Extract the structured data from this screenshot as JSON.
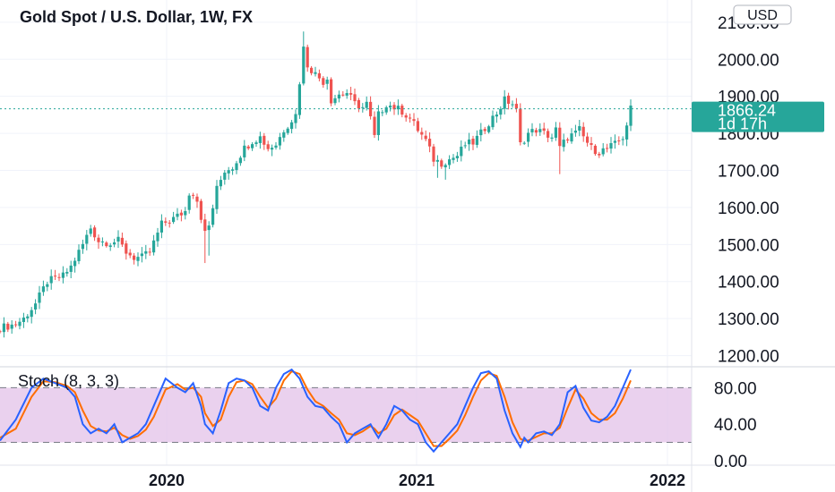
{
  "chart_data": [
    {
      "type": "candlestick",
      "title": "Gold Spot / U.S. Dollar, 1W, FX",
      "currency": "USD",
      "ylim": [
        1170,
        2160
      ],
      "y_ticks": [
        "1200.00",
        "1300.00",
        "1400.00",
        "1500.00",
        "1600.00",
        "1700.00",
        "1800.00",
        "1900.00",
        "2000.00",
        "2100.00"
      ],
      "x_ticks": [
        "2020",
        "2021",
        "2022"
      ],
      "last_price": 1866.24,
      "last_price_label": "1866.24",
      "countdown_label": "1d 17h",
      "colors": {
        "up": "#26a69a",
        "down": "#ef5350",
        "price_line": "#26a69a",
        "badge": "#26a69a"
      },
      "anchors": [
        [
          0,
          1275
        ],
        [
          4,
          1285
        ],
        [
          6,
          1300
        ],
        [
          9,
          1340
        ],
        [
          12,
          1400
        ],
        [
          16,
          1415
        ],
        [
          18,
          1440
        ],
        [
          21,
          1500
        ],
        [
          23,
          1545
        ],
        [
          25,
          1510
        ],
        [
          28,
          1505
        ],
        [
          30,
          1510
        ],
        [
          32,
          1480
        ],
        [
          34,
          1465
        ],
        [
          36,
          1465
        ],
        [
          38,
          1480
        ],
        [
          41,
          1555
        ],
        [
          44,
          1570
        ],
        [
          47,
          1590
        ],
        [
          48,
          1640
        ],
        [
          49,
          1640
        ],
        [
          50,
          1620
        ],
        [
          52,
          1530
        ],
        [
          53,
          1550
        ],
        [
          55,
          1650
        ],
        [
          57,
          1700
        ],
        [
          59,
          1710
        ],
        [
          62,
          1760
        ],
        [
          64,
          1780
        ],
        [
          66,
          1790
        ],
        [
          68,
          1760
        ],
        [
          70,
          1770
        ],
        [
          72,
          1810
        ],
        [
          75,
          1850
        ],
        [
          76,
          1940
        ],
        [
          77,
          2030
        ],
        [
          78,
          1985
        ],
        [
          80,
          1960
        ],
        [
          82,
          1940
        ],
        [
          83,
          1950
        ],
        [
          84,
          1890
        ],
        [
          86,
          1905
        ],
        [
          88,
          1910
        ],
        [
          90,
          1880
        ],
        [
          92,
          1870
        ],
        [
          93,
          1880
        ],
        [
          94,
          1840
        ],
        [
          95,
          1790
        ],
        [
          96,
          1850
        ],
        [
          98,
          1880
        ],
        [
          100,
          1870
        ],
        [
          102,
          1860
        ],
        [
          104,
          1840
        ],
        [
          106,
          1810
        ],
        [
          108,
          1780
        ],
        [
          110,
          1730
        ],
        [
          112,
          1720
        ],
        [
          114,
          1730
        ],
        [
          116,
          1740
        ],
        [
          118,
          1770
        ],
        [
          120,
          1775
        ],
        [
          122,
          1800
        ],
        [
          124,
          1830
        ],
        [
          126,
          1855
        ],
        [
          128,
          1890
        ],
        [
          130,
          1880
        ],
        [
          131,
          1860
        ],
        [
          132,
          1770
        ],
        [
          134,
          1800
        ],
        [
          136,
          1810
        ],
        [
          138,
          1800
        ],
        [
          140,
          1790
        ],
        [
          141,
          1810
        ],
        [
          142,
          1760
        ],
        [
          144,
          1790
        ],
        [
          146,
          1800
        ],
        [
          147,
          1810
        ],
        [
          148,
          1790
        ],
        [
          150,
          1760
        ],
        [
          152,
          1750
        ],
        [
          154,
          1760
        ],
        [
          156,
          1770
        ],
        [
          158,
          1790
        ],
        [
          159,
          1825
        ],
        [
          160,
          1866
        ]
      ],
      "spikes": [
        [
          52,
          1450
        ],
        [
          53,
          1470
        ],
        [
          77,
          2075
        ],
        [
          111,
          1680
        ],
        [
          113,
          1675
        ],
        [
          142,
          1690
        ]
      ]
    },
    {
      "type": "line",
      "title": "Stoch (8, 3, 3)",
      "ylim": [
        -5,
        103
      ],
      "y_ticks": [
        "0.00",
        "40.00",
        "80.00"
      ],
      "bands": [
        20,
        80
      ],
      "colors": {
        "k": "#2962ff",
        "d": "#ff6d00",
        "band": "#e1bee7"
      },
      "series": [
        {
          "role": "k",
          "x": [
            0,
            4,
            8,
            11,
            14,
            17,
            19,
            21,
            23,
            25,
            27,
            29,
            31,
            33,
            35,
            37,
            39,
            42,
            45,
            47,
            49,
            51,
            52,
            54,
            56,
            58,
            60,
            62,
            64,
            66,
            68,
            70,
            72,
            74,
            76,
            78,
            80,
            82,
            84,
            86,
            88,
            90,
            92,
            94,
            95,
            96,
            98,
            100,
            102,
            104,
            106,
            108,
            110,
            112,
            114,
            116,
            118,
            120,
            122,
            124,
            126,
            128,
            130,
            132,
            133,
            134,
            136,
            138,
            140,
            142,
            144,
            146,
            148,
            150,
            152,
            154,
            156,
            158,
            160
          ],
          "y": [
            22,
            45,
            80,
            90,
            85,
            80,
            70,
            40,
            30,
            35,
            30,
            40,
            20,
            25,
            30,
            40,
            60,
            90,
            80,
            75,
            85,
            60,
            40,
            30,
            55,
            85,
            90,
            88,
            80,
            60,
            55,
            80,
            95,
            100,
            90,
            70,
            60,
            58,
            48,
            40,
            20,
            30,
            35,
            40,
            32,
            25,
            40,
            60,
            55,
            45,
            40,
            20,
            10,
            20,
            30,
            40,
            60,
            80,
            96,
            98,
            90,
            55,
            30,
            15,
            25,
            20,
            30,
            32,
            28,
            40,
            75,
            82,
            58,
            44,
            42,
            48,
            60,
            80,
            100
          ]
        },
        {
          "role": "d",
          "x": [
            0,
            4,
            8,
            11,
            14,
            17,
            19,
            21,
            23,
            25,
            27,
            29,
            31,
            33,
            35,
            37,
            39,
            42,
            45,
            47,
            49,
            51,
            52,
            54,
            56,
            58,
            60,
            62,
            64,
            66,
            68,
            70,
            72,
            74,
            76,
            78,
            80,
            82,
            84,
            86,
            88,
            90,
            92,
            94,
            95,
            96,
            98,
            100,
            102,
            104,
            106,
            108,
            110,
            112,
            114,
            116,
            118,
            120,
            122,
            124,
            126,
            128,
            130,
            132,
            133,
            134,
            136,
            138,
            140,
            142,
            144,
            146,
            148,
            150,
            152,
            154,
            156,
            158,
            160
          ],
          "y": [
            25,
            35,
            70,
            87,
            86,
            82,
            75,
            55,
            38,
            33,
            32,
            36,
            28,
            24,
            27,
            34,
            48,
            78,
            84,
            78,
            80,
            70,
            52,
            38,
            45,
            70,
            86,
            88,
            84,
            70,
            58,
            68,
            88,
            98,
            95,
            78,
            65,
            60,
            52,
            45,
            30,
            28,
            32,
            38,
            35,
            30,
            35,
            50,
            56,
            50,
            44,
            30,
            16,
            16,
            24,
            33,
            50,
            70,
            88,
            96,
            93,
            70,
            42,
            24,
            22,
            22,
            26,
            30,
            30,
            36,
            58,
            78,
            68,
            52,
            45,
            45,
            52,
            68,
            88
          ]
        }
      ]
    }
  ]
}
